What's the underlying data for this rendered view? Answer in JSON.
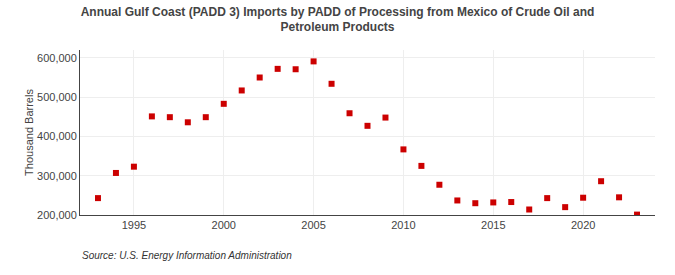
{
  "chart_data": {
    "type": "scatter",
    "title": "Annual Gulf Coast (PADD 3) Imports by PADD of Processing from Mexico of Crude Oil and\nPetroleum Products",
    "ylabel": "Thousand Barrels",
    "annotations": [
      "Source: U.S. Energy Information Administration"
    ],
    "color": "#cc0000",
    "marker": "square",
    "x": [
      1993,
      1994,
      1995,
      1996,
      1997,
      1998,
      1999,
      2000,
      2001,
      2002,
      2003,
      2004,
      2005,
      2006,
      2007,
      2008,
      2009,
      2010,
      2011,
      2012,
      2013,
      2014,
      2015,
      2016,
      2017,
      2018,
      2019,
      2020,
      2021,
      2022,
      2023
    ],
    "values": [
      243000,
      307000,
      323000,
      451000,
      449000,
      436000,
      449000,
      483000,
      517000,
      550000,
      572000,
      571000,
      591000,
      534000,
      459000,
      427000,
      448000,
      367000,
      325000,
      277000,
      237000,
      230000,
      232000,
      233000,
      214000,
      243000,
      220000,
      244000,
      286000,
      245000,
      201000
    ],
    "xlim": [
      1992,
      2024
    ],
    "xticks": [
      1995,
      2000,
      2005,
      2010,
      2015,
      2020
    ],
    "ylim": [
      200000,
      620000
    ],
    "yticks": [
      {
        "value": 200000,
        "label": "200,000"
      },
      {
        "value": 300000,
        "label": "300,000"
      },
      {
        "value": 400000,
        "label": "400,000"
      },
      {
        "value": 500000,
        "label": "500,000"
      },
      {
        "value": 600000,
        "label": "600,000"
      }
    ],
    "grid": true
  }
}
